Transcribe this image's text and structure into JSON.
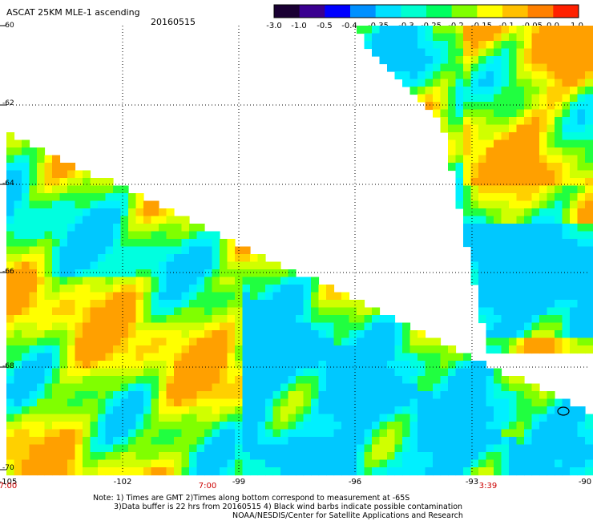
{
  "header": {
    "title": "ASCAT 25KM MLE-1 ascending",
    "date": "20160515"
  },
  "colorbar": {
    "ticks": [
      "-3.0",
      "-1.0",
      "-0.5",
      "-0.4",
      "-0.35",
      "-0.3",
      "-0.25",
      "-0.2",
      "-0.15",
      "-0.1",
      "-0.05",
      "0.0",
      "1.0"
    ],
    "colors": [
      "#1a0033",
      "#3a0090",
      "#0000ff",
      "#0090ff",
      "#00e0ff",
      "#00ffd0",
      "#00ff60",
      "#80ff00",
      "#ffff00",
      "#ffc000",
      "#ff8000",
      "#ff2000"
    ]
  },
  "map": {
    "latitudes": [
      "-60",
      "-62",
      "-64",
      "-66",
      "-68",
      "-70"
    ],
    "longitudes": [
      "-105",
      "-102",
      "-99",
      "-96",
      "-93",
      "-90"
    ],
    "times": [
      "7:00",
      "7:00",
      "3:39"
    ]
  },
  "notes": {
    "line1": "Note: 1) Times are GMT 2)Times along bottom correspond to measurement at -65S",
    "line2": "3)Data buffer is 22 hrs from 20160515 4) Black wind barbs indicate possible contamination",
    "line3": "NOAA/NESDIS/Center for Satellite Applications and Research"
  }
}
